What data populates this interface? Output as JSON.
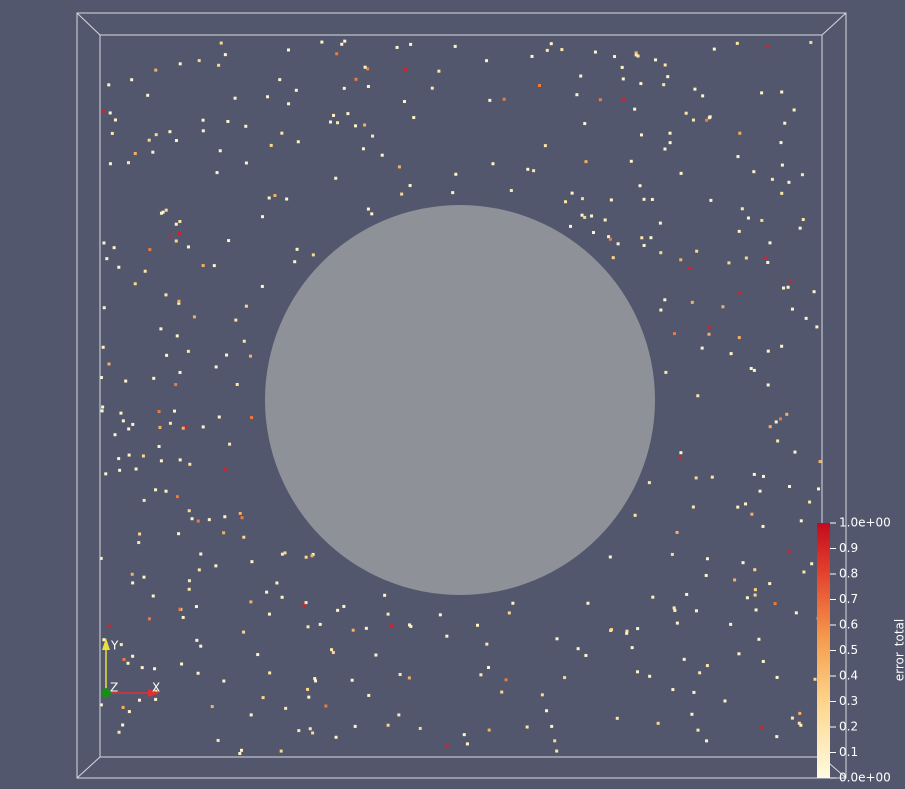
{
  "colorbar": {
    "title": "error_total",
    "ticks": [
      {
        "value": 1,
        "label": "1.0e+00"
      },
      0.9,
      0.8,
      0.7,
      0.6,
      0.5,
      0.4,
      0.3,
      0.2,
      0.1,
      {
        "value": 0,
        "label": "0.0e+00"
      }
    ]
  },
  "axes_widget": {
    "x": "X",
    "y": "Y",
    "z": "Z"
  }
}
